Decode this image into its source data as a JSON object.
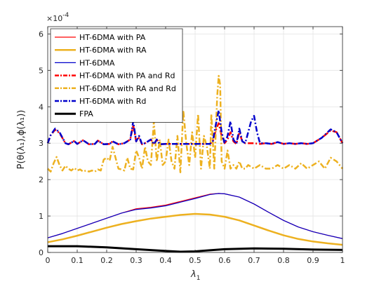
{
  "chart_data": {
    "type": "line",
    "exponent_label": "×10",
    "exponent_power": "-4",
    "xlabel": "λ",
    "xlabel_sub": "1",
    "ylabel": "P(θ(λ₁),ϕ(λ₁))",
    "xlim": [
      0,
      1
    ],
    "ylim": [
      0,
      6.2
    ],
    "grid": true,
    "legend_position": "top-left",
    "x_ticks": [
      0,
      0.1,
      0.2,
      0.3,
      0.4,
      0.5,
      0.6,
      0.7,
      0.8,
      0.9,
      1
    ],
    "x_tick_labels": [
      "0",
      "0.1",
      "0.2",
      "0.3",
      "0.4",
      "0.5",
      "0.6",
      "0.7",
      "0.8",
      "0.9",
      "1"
    ],
    "y_ticks": [
      0,
      1,
      2,
      3,
      4,
      5,
      6
    ],
    "y_tick_labels": [
      "0",
      "1",
      "2",
      "3",
      "4",
      "5",
      "6"
    ],
    "series": [
      {
        "name": "HT-6DMA with PA",
        "color": "#ff0000",
        "style": "solid",
        "width": 1.2,
        "points": [
          [
            0,
            0.4
          ],
          [
            0.05,
            0.52
          ],
          [
            0.1,
            0.66
          ],
          [
            0.15,
            0.8
          ],
          [
            0.2,
            0.94
          ],
          [
            0.25,
            1.08
          ],
          [
            0.3,
            1.2
          ],
          [
            0.35,
            1.24
          ],
          [
            0.4,
            1.3
          ],
          [
            0.45,
            1.4
          ],
          [
            0.5,
            1.5
          ],
          [
            0.55,
            1.6
          ],
          [
            0.58,
            1.62
          ],
          [
            0.6,
            1.61
          ],
          [
            0.65,
            1.52
          ],
          [
            0.7,
            1.33
          ],
          [
            0.75,
            1.1
          ],
          [
            0.8,
            0.88
          ],
          [
            0.85,
            0.7
          ],
          [
            0.9,
            0.57
          ],
          [
            0.95,
            0.47
          ],
          [
            1,
            0.38
          ]
        ]
      },
      {
        "name": "HT-6DMA with RA",
        "color": "#edb120",
        "style": "solid",
        "width": 2.5,
        "points": [
          [
            0,
            0.28
          ],
          [
            0.05,
            0.36
          ],
          [
            0.1,
            0.46
          ],
          [
            0.15,
            0.57
          ],
          [
            0.2,
            0.68
          ],
          [
            0.25,
            0.78
          ],
          [
            0.3,
            0.86
          ],
          [
            0.35,
            0.93
          ],
          [
            0.4,
            0.98
          ],
          [
            0.45,
            1.03
          ],
          [
            0.5,
            1.06
          ],
          [
            0.55,
            1.04
          ],
          [
            0.6,
            0.98
          ],
          [
            0.65,
            0.88
          ],
          [
            0.7,
            0.74
          ],
          [
            0.75,
            0.6
          ],
          [
            0.8,
            0.47
          ],
          [
            0.85,
            0.37
          ],
          [
            0.9,
            0.3
          ],
          [
            0.95,
            0.25
          ],
          [
            1,
            0.21
          ]
        ]
      },
      {
        "name": "HT-6DMA",
        "color": "#0000cc",
        "style": "solid",
        "width": 1.2,
        "points": [
          [
            0,
            0.4
          ],
          [
            0.05,
            0.52
          ],
          [
            0.1,
            0.66
          ],
          [
            0.15,
            0.8
          ],
          [
            0.2,
            0.94
          ],
          [
            0.25,
            1.08
          ],
          [
            0.3,
            1.18
          ],
          [
            0.35,
            1.22
          ],
          [
            0.4,
            1.28
          ],
          [
            0.45,
            1.38
          ],
          [
            0.5,
            1.48
          ],
          [
            0.55,
            1.59
          ],
          [
            0.58,
            1.62
          ],
          [
            0.6,
            1.61
          ],
          [
            0.65,
            1.52
          ],
          [
            0.7,
            1.33
          ],
          [
            0.75,
            1.1
          ],
          [
            0.8,
            0.88
          ],
          [
            0.85,
            0.7
          ],
          [
            0.9,
            0.57
          ],
          [
            0.95,
            0.47
          ],
          [
            1,
            0.38
          ]
        ]
      },
      {
        "name": "HT-6DMA with PA and Rd",
        "color": "#ff0000",
        "style": "dashdot",
        "width": 2.5,
        "points": [
          [
            0,
            3.0
          ],
          [
            0.01,
            3.22
          ],
          [
            0.025,
            3.37
          ],
          [
            0.04,
            3.28
          ],
          [
            0.06,
            3.0
          ],
          [
            0.07,
            2.97
          ],
          [
            0.09,
            3.06
          ],
          [
            0.1,
            2.98
          ],
          [
            0.12,
            3.08
          ],
          [
            0.14,
            2.97
          ],
          [
            0.16,
            2.98
          ],
          [
            0.17,
            3.07
          ],
          [
            0.19,
            2.97
          ],
          [
            0.21,
            2.98
          ],
          [
            0.22,
            3.05
          ],
          [
            0.24,
            2.97
          ],
          [
            0.26,
            3.0
          ],
          [
            0.28,
            3.1
          ],
          [
            0.29,
            3.5
          ],
          [
            0.3,
            3.05
          ],
          [
            0.31,
            3.15
          ],
          [
            0.32,
            2.97
          ],
          [
            0.33,
            3.0
          ],
          [
            0.35,
            3.1
          ],
          [
            0.36,
            2.97
          ],
          [
            0.37,
            3.1
          ],
          [
            0.38,
            2.97
          ],
          [
            0.4,
            2.98
          ],
          [
            0.45,
            2.98
          ],
          [
            0.5,
            2.98
          ],
          [
            0.55,
            2.98
          ],
          [
            0.56,
            3.05
          ],
          [
            0.57,
            3.35
          ],
          [
            0.58,
            3.55
          ],
          [
            0.59,
            3.2
          ],
          [
            0.6,
            3.0
          ],
          [
            0.61,
            3.1
          ],
          [
            0.62,
            3.3
          ],
          [
            0.63,
            3.05
          ],
          [
            0.64,
            2.98
          ],
          [
            0.65,
            3.3
          ],
          [
            0.66,
            3.05
          ],
          [
            0.67,
            3.0
          ],
          [
            0.68,
            3.0
          ],
          [
            0.7,
            3.0
          ],
          [
            0.72,
            2.98
          ],
          [
            0.74,
            3.0
          ],
          [
            0.76,
            2.98
          ],
          [
            0.78,
            3.03
          ],
          [
            0.8,
            2.98
          ],
          [
            0.82,
            3.0
          ],
          [
            0.84,
            2.98
          ],
          [
            0.86,
            3.0
          ],
          [
            0.88,
            2.98
          ],
          [
            0.9,
            3.0
          ],
          [
            0.93,
            3.15
          ],
          [
            0.96,
            3.35
          ],
          [
            0.98,
            3.3
          ],
          [
            1,
            3.0
          ]
        ]
      },
      {
        "name": "HT-6DMA with RA and Rd",
        "color": "#edb120",
        "style": "dashdot",
        "width": 2.5,
        "points": [
          [
            0,
            2.3
          ],
          [
            0.01,
            2.22
          ],
          [
            0.02,
            2.45
          ],
          [
            0.03,
            2.62
          ],
          [
            0.04,
            2.4
          ],
          [
            0.05,
            2.25
          ],
          [
            0.06,
            2.38
          ],
          [
            0.07,
            2.3
          ],
          [
            0.08,
            2.25
          ],
          [
            0.09,
            2.32
          ],
          [
            0.1,
            2.25
          ],
          [
            0.11,
            2.28
          ],
          [
            0.12,
            2.22
          ],
          [
            0.13,
            2.25
          ],
          [
            0.14,
            2.22
          ],
          [
            0.15,
            2.25
          ],
          [
            0.16,
            2.22
          ],
          [
            0.17,
            2.28
          ],
          [
            0.18,
            2.25
          ],
          [
            0.19,
            2.55
          ],
          [
            0.2,
            2.6
          ],
          [
            0.21,
            2.52
          ],
          [
            0.22,
            2.9
          ],
          [
            0.23,
            2.6
          ],
          [
            0.24,
            2.3
          ],
          [
            0.25,
            2.28
          ],
          [
            0.26,
            2.25
          ],
          [
            0.27,
            2.6
          ],
          [
            0.28,
            2.3
          ],
          [
            0.29,
            2.28
          ],
          [
            0.3,
            2.8
          ],
          [
            0.31,
            2.6
          ],
          [
            0.32,
            2.3
          ],
          [
            0.33,
            2.9
          ],
          [
            0.34,
            2.5
          ],
          [
            0.35,
            2.4
          ],
          [
            0.36,
            3.6
          ],
          [
            0.37,
            2.5
          ],
          [
            0.38,
            3.1
          ],
          [
            0.39,
            2.4
          ],
          [
            0.4,
            2.5
          ],
          [
            0.41,
            3.1
          ],
          [
            0.42,
            2.5
          ],
          [
            0.43,
            2.3
          ],
          [
            0.44,
            3.2
          ],
          [
            0.45,
            2.2
          ],
          [
            0.46,
            3.9
          ],
          [
            0.47,
            3.0
          ],
          [
            0.48,
            2.4
          ],
          [
            0.49,
            3.3
          ],
          [
            0.5,
            2.6
          ],
          [
            0.51,
            3.8
          ],
          [
            0.52,
            2.3
          ],
          [
            0.53,
            3.2
          ],
          [
            0.54,
            2.9
          ],
          [
            0.55,
            2.3
          ],
          [
            0.555,
            3.8
          ],
          [
            0.565,
            2.3
          ],
          [
            0.575,
            4.3
          ],
          [
            0.58,
            4.85
          ],
          [
            0.585,
            4.6
          ],
          [
            0.59,
            2.5
          ],
          [
            0.6,
            2.3
          ],
          [
            0.61,
            2.8
          ],
          [
            0.62,
            2.3
          ],
          [
            0.63,
            2.4
          ],
          [
            0.64,
            2.3
          ],
          [
            0.65,
            2.5
          ],
          [
            0.66,
            2.3
          ],
          [
            0.67,
            2.3
          ],
          [
            0.68,
            2.4
          ],
          [
            0.7,
            2.3
          ],
          [
            0.72,
            2.4
          ],
          [
            0.74,
            2.3
          ],
          [
            0.76,
            2.3
          ],
          [
            0.78,
            2.4
          ],
          [
            0.8,
            2.3
          ],
          [
            0.82,
            2.4
          ],
          [
            0.84,
            2.3
          ],
          [
            0.86,
            2.45
          ],
          [
            0.88,
            2.3
          ],
          [
            0.9,
            2.4
          ],
          [
            0.92,
            2.5
          ],
          [
            0.94,
            2.3
          ],
          [
            0.96,
            2.6
          ],
          [
            0.98,
            2.5
          ],
          [
            1,
            2.3
          ]
        ]
      },
      {
        "name": "HT-6DMA with Rd",
        "color": "#0000cc",
        "style": "dashdot",
        "width": 2.5,
        "points": [
          [
            0,
            3.0
          ],
          [
            0.01,
            3.22
          ],
          [
            0.025,
            3.4
          ],
          [
            0.04,
            3.3
          ],
          [
            0.06,
            3.0
          ],
          [
            0.07,
            2.97
          ],
          [
            0.09,
            3.06
          ],
          [
            0.1,
            2.98
          ],
          [
            0.12,
            3.08
          ],
          [
            0.14,
            2.97
          ],
          [
            0.16,
            2.98
          ],
          [
            0.17,
            3.07
          ],
          [
            0.19,
            2.97
          ],
          [
            0.21,
            2.98
          ],
          [
            0.22,
            3.05
          ],
          [
            0.24,
            2.97
          ],
          [
            0.26,
            3.0
          ],
          [
            0.28,
            3.1
          ],
          [
            0.29,
            3.6
          ],
          [
            0.3,
            3.05
          ],
          [
            0.31,
            3.2
          ],
          [
            0.32,
            2.97
          ],
          [
            0.33,
            3.0
          ],
          [
            0.35,
            3.1
          ],
          [
            0.36,
            2.97
          ],
          [
            0.37,
            3.1
          ],
          [
            0.38,
            2.97
          ],
          [
            0.4,
            2.98
          ],
          [
            0.45,
            2.98
          ],
          [
            0.5,
            2.98
          ],
          [
            0.55,
            2.98
          ],
          [
            0.56,
            3.05
          ],
          [
            0.57,
            3.5
          ],
          [
            0.58,
            3.9
          ],
          [
            0.59,
            3.3
          ],
          [
            0.6,
            3.0
          ],
          [
            0.61,
            3.2
          ],
          [
            0.62,
            3.6
          ],
          [
            0.63,
            3.1
          ],
          [
            0.64,
            2.98
          ],
          [
            0.65,
            3.4
          ],
          [
            0.66,
            3.05
          ],
          [
            0.67,
            3.0
          ],
          [
            0.68,
            3.3
          ],
          [
            0.69,
            3.6
          ],
          [
            0.7,
            3.75
          ],
          [
            0.71,
            3.3
          ],
          [
            0.72,
            3.0
          ],
          [
            0.74,
            3.0
          ],
          [
            0.76,
            2.98
          ],
          [
            0.78,
            3.03
          ],
          [
            0.8,
            2.98
          ],
          [
            0.82,
            3.0
          ],
          [
            0.84,
            2.98
          ],
          [
            0.86,
            3.0
          ],
          [
            0.88,
            2.98
          ],
          [
            0.9,
            3.0
          ],
          [
            0.93,
            3.15
          ],
          [
            0.96,
            3.38
          ],
          [
            0.98,
            3.3
          ],
          [
            1,
            3.0
          ]
        ]
      },
      {
        "name": "FPA",
        "color": "#000000",
        "style": "solid",
        "width": 3,
        "points": [
          [
            0,
            0.17
          ],
          [
            0.1,
            0.17
          ],
          [
            0.2,
            0.14
          ],
          [
            0.3,
            0.09
          ],
          [
            0.4,
            0.04
          ],
          [
            0.45,
            0.02
          ],
          [
            0.5,
            0.03
          ],
          [
            0.55,
            0.06
          ],
          [
            0.6,
            0.09
          ],
          [
            0.7,
            0.11
          ],
          [
            0.8,
            0.1
          ],
          [
            0.9,
            0.08
          ],
          [
            1,
            0.07
          ]
        ]
      }
    ]
  }
}
